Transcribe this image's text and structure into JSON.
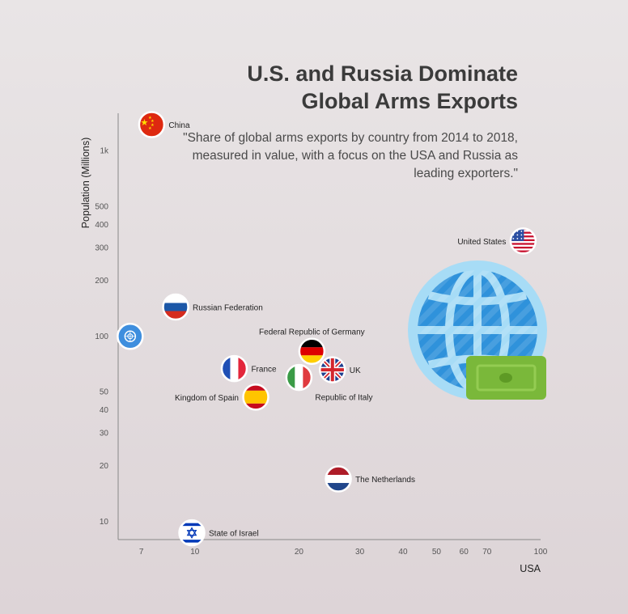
{
  "title_line1": "U.S. and Russia Dominate",
  "title_line2": "Global Arms Exports",
  "subtitle": "\"Share of global arms exports by country from 2014 to 2018, measured in value, with a focus on the USA and Russia as leading exporters.\"",
  "chart_data": {
    "type": "scatter",
    "xscale": "log",
    "yscale": "log",
    "xlabel": "USA",
    "ylabel": "Population (Millions)",
    "xlim": [
      6,
      100
    ],
    "ylim": [
      8,
      1600
    ],
    "xticks": [
      {
        "v": 7,
        "label": "7"
      },
      {
        "v": 10,
        "label": "10"
      },
      {
        "v": 20,
        "label": "20"
      },
      {
        "v": 30,
        "label": "30"
      },
      {
        "v": 40,
        "label": "40"
      },
      {
        "v": 50,
        "label": "50"
      },
      {
        "v": 60,
        "label": "60"
      },
      {
        "v": 70,
        "label": "70"
      },
      {
        "v": 100,
        "label": "100"
      }
    ],
    "yticks": [
      {
        "v": 10,
        "label": "10"
      },
      {
        "v": 20,
        "label": "20"
      },
      {
        "v": 30,
        "label": "30"
      },
      {
        "v": 40,
        "label": "40"
      },
      {
        "v": 50,
        "label": "50"
      },
      {
        "v": 100,
        "label": "100"
      },
      {
        "v": 200,
        "label": "200"
      },
      {
        "v": 300,
        "label": "300"
      },
      {
        "v": 400,
        "label": "400"
      },
      {
        "v": 500,
        "label": "500"
      },
      {
        "v": 1000,
        "label": "1k"
      }
    ],
    "points": [
      {
        "name": "China",
        "x": 7.5,
        "y": 1390,
        "flag": "china",
        "label_side": "right"
      },
      {
        "name": "United States",
        "x": 89,
        "y": 327,
        "flag": "usa",
        "label_side": "left"
      },
      {
        "name": "Russian Federation",
        "x": 8.8,
        "y": 144,
        "flag": "russia",
        "label_side": "right"
      },
      {
        "name": "",
        "x": 6.5,
        "y": 100,
        "flag": "un",
        "label_side": "none"
      },
      {
        "name": "Federal Republic of Germany",
        "x": 21.8,
        "y": 83,
        "flag": "germany",
        "label_side": "above"
      },
      {
        "name": "France",
        "x": 13,
        "y": 67,
        "flag": "france",
        "label_side": "right"
      },
      {
        "name": "UK",
        "x": 25,
        "y": 66,
        "flag": "uk",
        "label_side": "right"
      },
      {
        "name": "Republic of Italy",
        "x": 20,
        "y": 60,
        "flag": "italy",
        "label_side": "below-right"
      },
      {
        "name": "Kingdom of Spain",
        "x": 15,
        "y": 47,
        "flag": "spain",
        "label_side": "left"
      },
      {
        "name": "The Netherlands",
        "x": 26,
        "y": 17,
        "flag": "netherlands",
        "label_side": "right"
      },
      {
        "name": "State of Israel",
        "x": 9.8,
        "y": 8.7,
        "flag": "israel",
        "label_side": "right"
      }
    ]
  }
}
